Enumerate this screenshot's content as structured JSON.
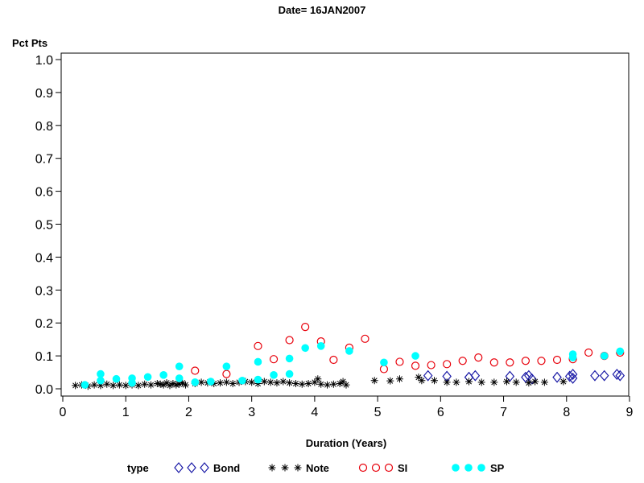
{
  "chart_data": {
    "type": "scatter",
    "title": "Date= 16JAN2007",
    "xlabel": "Duration (Years)",
    "ylabel": "Pct Pts",
    "xlim": [
      0,
      9
    ],
    "ylim": [
      0,
      1.0
    ],
    "xticks": [
      "0",
      "1",
      "2",
      "3",
      "4",
      "5",
      "6",
      "7",
      "8",
      "9"
    ],
    "yticks": [
      "0.0",
      "0.1",
      "0.2",
      "0.3",
      "0.4",
      "0.5",
      "0.6",
      "0.7",
      "0.8",
      "0.9",
      "1.0"
    ],
    "grid": false,
    "legend": {
      "title": "type",
      "placement": "bottom"
    },
    "series": [
      {
        "name": "Bond",
        "marker": "diamond",
        "color": "#1a1aa6",
        "points": [
          [
            5.8,
            0.04
          ],
          [
            6.1,
            0.038
          ],
          [
            6.45,
            0.035
          ],
          [
            6.55,
            0.04
          ],
          [
            7.1,
            0.038
          ],
          [
            7.35,
            0.035
          ],
          [
            7.4,
            0.04
          ],
          [
            7.45,
            0.03
          ],
          [
            7.85,
            0.035
          ],
          [
            8.05,
            0.038
          ],
          [
            8.1,
            0.044
          ],
          [
            8.1,
            0.032
          ],
          [
            8.45,
            0.04
          ],
          [
            8.6,
            0.04
          ],
          [
            8.8,
            0.044
          ],
          [
            8.85,
            0.04
          ]
        ]
      },
      {
        "name": "Note",
        "marker": "star",
        "color": "#000000",
        "points": [
          [
            0.2,
            0.01
          ],
          [
            0.3,
            0.012
          ],
          [
            0.4,
            0.008
          ],
          [
            0.5,
            0.012
          ],
          [
            0.6,
            0.01
          ],
          [
            0.7,
            0.014
          ],
          [
            0.8,
            0.01
          ],
          [
            0.9,
            0.012
          ],
          [
            1.0,
            0.01
          ],
          [
            1.1,
            0.012
          ],
          [
            1.2,
            0.01
          ],
          [
            1.3,
            0.014
          ],
          [
            1.4,
            0.012
          ],
          [
            1.5,
            0.016
          ],
          [
            1.55,
            0.014
          ],
          [
            1.6,
            0.012
          ],
          [
            1.65,
            0.018
          ],
          [
            1.7,
            0.01
          ],
          [
            1.75,
            0.016
          ],
          [
            1.8,
            0.012
          ],
          [
            1.85,
            0.014
          ],
          [
            1.9,
            0.018
          ],
          [
            1.95,
            0.012
          ],
          [
            2.1,
            0.016
          ],
          [
            2.2,
            0.02
          ],
          [
            2.3,
            0.018
          ],
          [
            2.4,
            0.016
          ],
          [
            2.5,
            0.018
          ],
          [
            2.6,
            0.02
          ],
          [
            2.7,
            0.016
          ],
          [
            2.8,
            0.02
          ],
          [
            2.9,
            0.022
          ],
          [
            3.0,
            0.02
          ],
          [
            3.1,
            0.016
          ],
          [
            3.2,
            0.022
          ],
          [
            3.3,
            0.02
          ],
          [
            3.4,
            0.018
          ],
          [
            3.5,
            0.022
          ],
          [
            3.6,
            0.018
          ],
          [
            3.7,
            0.016
          ],
          [
            3.8,
            0.014
          ],
          [
            3.9,
            0.016
          ],
          [
            4.0,
            0.02
          ],
          [
            4.05,
            0.03
          ],
          [
            4.1,
            0.014
          ],
          [
            4.2,
            0.012
          ],
          [
            4.3,
            0.014
          ],
          [
            4.4,
            0.016
          ],
          [
            4.45,
            0.022
          ],
          [
            4.5,
            0.012
          ],
          [
            4.95,
            0.025
          ],
          [
            5.2,
            0.024
          ],
          [
            5.35,
            0.03
          ],
          [
            5.65,
            0.035
          ],
          [
            5.7,
            0.025
          ],
          [
            5.9,
            0.025
          ],
          [
            6.1,
            0.02
          ],
          [
            6.25,
            0.02
          ],
          [
            6.45,
            0.022
          ],
          [
            6.65,
            0.02
          ],
          [
            6.85,
            0.02
          ],
          [
            7.05,
            0.022
          ],
          [
            7.2,
            0.02
          ],
          [
            7.4,
            0.018
          ],
          [
            7.5,
            0.022
          ],
          [
            7.65,
            0.02
          ],
          [
            7.95,
            0.022
          ]
        ]
      },
      {
        "name": "SI",
        "marker": "circle",
        "color": "#e8000b",
        "points": [
          [
            2.1,
            0.055
          ],
          [
            2.6,
            0.045
          ],
          [
            3.1,
            0.13
          ],
          [
            3.35,
            0.09
          ],
          [
            3.6,
            0.148
          ],
          [
            3.85,
            0.188
          ],
          [
            4.1,
            0.144
          ],
          [
            4.3,
            0.088
          ],
          [
            4.55,
            0.125
          ],
          [
            4.8,
            0.152
          ],
          [
            5.1,
            0.06
          ],
          [
            5.35,
            0.082
          ],
          [
            5.6,
            0.07
          ],
          [
            5.85,
            0.072
          ],
          [
            6.1,
            0.075
          ],
          [
            6.35,
            0.085
          ],
          [
            6.6,
            0.095
          ],
          [
            6.85,
            0.08
          ],
          [
            7.1,
            0.08
          ],
          [
            7.35,
            0.085
          ],
          [
            7.6,
            0.085
          ],
          [
            7.85,
            0.088
          ],
          [
            8.1,
            0.09
          ],
          [
            8.35,
            0.11
          ],
          [
            8.6,
            0.1
          ],
          [
            8.85,
            0.11
          ]
        ]
      },
      {
        "name": "SP",
        "marker": "dot",
        "color": "#00ffff",
        "points": [
          [
            0.35,
            0.012
          ],
          [
            0.6,
            0.045
          ],
          [
            0.6,
            0.025
          ],
          [
            0.85,
            0.03
          ],
          [
            1.1,
            0.032
          ],
          [
            1.1,
            0.018
          ],
          [
            1.35,
            0.036
          ],
          [
            1.6,
            0.042
          ],
          [
            1.85,
            0.068
          ],
          [
            1.85,
            0.032
          ],
          [
            2.1,
            0.02
          ],
          [
            2.35,
            0.022
          ],
          [
            2.6,
            0.068
          ],
          [
            2.85,
            0.025
          ],
          [
            3.1,
            0.082
          ],
          [
            3.1,
            0.028
          ],
          [
            3.35,
            0.042
          ],
          [
            3.6,
            0.092
          ],
          [
            3.6,
            0.045
          ],
          [
            3.85,
            0.124
          ],
          [
            4.1,
            0.13
          ],
          [
            4.55,
            0.115
          ],
          [
            5.1,
            0.08
          ],
          [
            5.6,
            0.1
          ],
          [
            8.1,
            0.105
          ],
          [
            8.1,
            0.095
          ],
          [
            8.6,
            0.1
          ],
          [
            8.85,
            0.114
          ]
        ]
      }
    ]
  }
}
